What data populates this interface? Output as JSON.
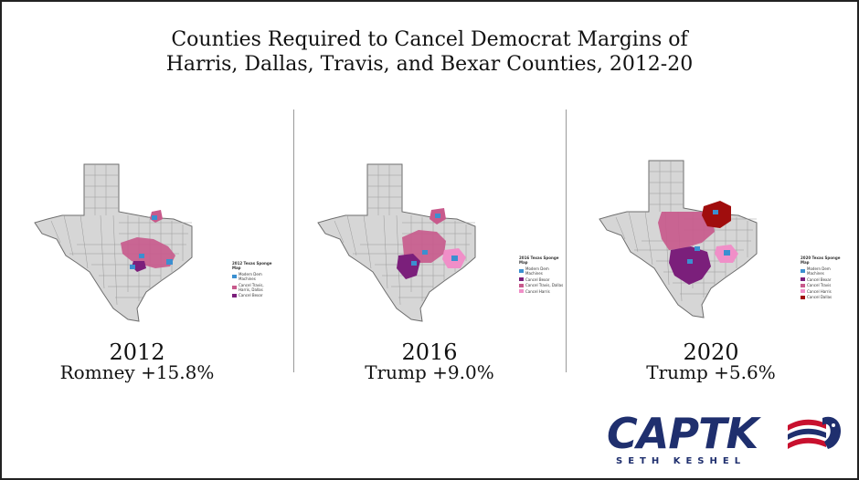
{
  "title": {
    "line1": "Counties Required to Cancel Democrat Margins of",
    "line2": "Harris, Dallas, Travis, and Bexar Counties, 2012-20"
  },
  "panels": [
    {
      "year": "2012",
      "margin": "Romney +15.8%",
      "legend_title": "2012 Texas Sponge Map",
      "legend": [
        {
          "label": "Modern Dem Machines",
          "color": "#3b8fd0"
        },
        {
          "label": "Cancel Travis, Harris, Dallas",
          "color": "#c85a8c"
        },
        {
          "label": "Cancel Bexar",
          "color": "#7b1f7b"
        }
      ]
    },
    {
      "year": "2016",
      "margin": "Trump +9.0%",
      "legend_title": "2016 Texas Sponge Map",
      "legend": [
        {
          "label": "Modern Dem Machines",
          "color": "#3b8fd0"
        },
        {
          "label": "Cancel Bexar",
          "color": "#7b1f7b"
        },
        {
          "label": "Cancel Travis, Dallas",
          "color": "#c85a8c"
        },
        {
          "label": "Cancel Harris",
          "color": "#f08fc8"
        }
      ]
    },
    {
      "year": "2020",
      "margin": "Trump +5.6%",
      "legend_title": "2020 Texas Sponge Map",
      "legend": [
        {
          "label": "Modern Dem Machines",
          "color": "#3b8fd0"
        },
        {
          "label": "Cancel Bexar",
          "color": "#7b1f7b"
        },
        {
          "label": "Cancel Travis",
          "color": "#c85a8c"
        },
        {
          "label": "Cancel Harris",
          "color": "#f08fc8"
        },
        {
          "label": "Cancel Dallas",
          "color": "#a00d0d"
        }
      ]
    }
  ],
  "logo": {
    "word": "CAPTK",
    "subtitle": "SETH KESHEL"
  },
  "colors": {
    "county_fill": "#d6d6d6",
    "county_line": "#8a8a8a",
    "logo_navy": "#1f2f6e",
    "logo_red": "#c8102e"
  }
}
